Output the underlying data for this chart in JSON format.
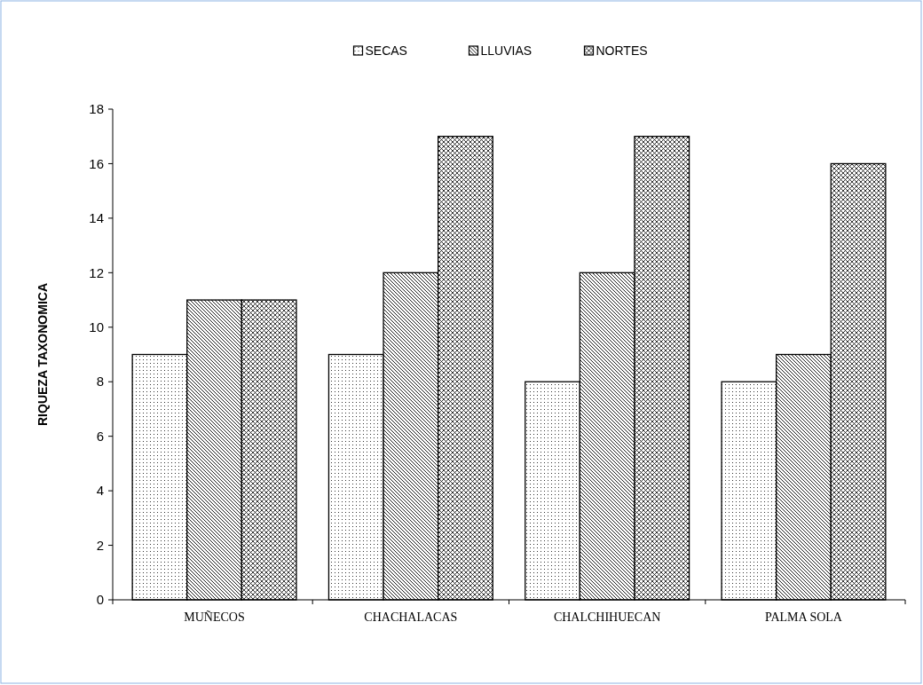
{
  "chart_data": {
    "type": "bar",
    "ylabel": "RIQUEZA TAXONOMICA",
    "categories": [
      "MUÑECOS",
      "CHACHALACAS",
      "CHALCHIHUECAN",
      "PALMA SOLA"
    ],
    "series": [
      {
        "name": "SECAS",
        "color": "#000000",
        "values": [
          9,
          9,
          8,
          8
        ]
      },
      {
        "name": "LLUVIAS",
        "color": "#000000",
        "values": [
          11,
          12,
          12,
          9
        ]
      },
      {
        "name": "NORTES",
        "color": "#000000",
        "values": [
          11,
          17,
          17,
          16
        ]
      }
    ],
    "ylim": [
      0,
      18
    ],
    "yticks": [
      0,
      2,
      4,
      6,
      8,
      10,
      12,
      14,
      16,
      18
    ],
    "grid": false,
    "legend": "top"
  }
}
